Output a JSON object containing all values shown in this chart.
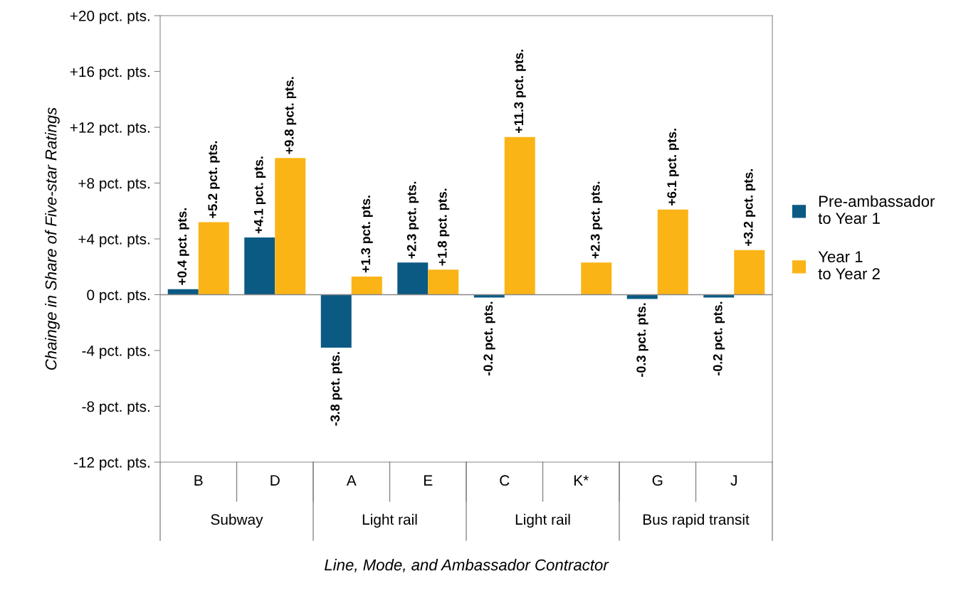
{
  "chart_data": {
    "type": "bar",
    "ylabel": "Chainge in Share of Five-star Ratings",
    "xlabel": "Line, Mode, and Ambassador Contractor",
    "categories": [
      "B",
      "D",
      "A",
      "E",
      "C",
      "K*",
      "G",
      "J"
    ],
    "annotations": [
      "Subway",
      "Light rail",
      "Light rail",
      "Bus rapid transit"
    ],
    "series": [
      {
        "name": "Pre-ambassador\nto Year 1",
        "color": "#0b5a84",
        "values": [
          0.4,
          4.1,
          -3.8,
          2.3,
          -0.2,
          null,
          -0.3,
          -0.2
        ],
        "value_labels": [
          "+0.4 pct. pts.",
          "+4.1 pct. pts.",
          "-3.8 pct. pts.",
          "+2.3 pct. pts.",
          "-0.2 pct. pts.",
          null,
          "-0.3 pct. pts.",
          "-0.2 pct. pts."
        ]
      },
      {
        "name": "Year 1\nto Year 2",
        "color": "#fbb416",
        "values": [
          5.2,
          9.8,
          1.3,
          1.8,
          11.3,
          2.3,
          6.1,
          3.2
        ],
        "value_labels": [
          "+5.2 pct. pts.",
          "+9.8 pct. pts.",
          "+1.3 pct. pts.",
          "+1.8 pct. pts.",
          "+11.3 pct. pts.",
          "+2.3 pct. pts.",
          "+6.1 pct. pts.",
          "+3.2 pct. pts."
        ]
      }
    ],
    "ylim": [
      -12,
      20
    ],
    "yticks": [
      {
        "value": -12,
        "label": "-12 pct. pts."
      },
      {
        "value": -8,
        "label": "-8 pct. pts."
      },
      {
        "value": -4,
        "label": "-4 pct. pts."
      },
      {
        "value": 0,
        "label": "0 pct. pts."
      },
      {
        "value": 4,
        "label": "+4 pct. pts."
      },
      {
        "value": 8,
        "label": "+8 pct. pts."
      },
      {
        "value": 12,
        "label": "+12 pct. pts."
      },
      {
        "value": 16,
        "label": "+16 pct. pts."
      },
      {
        "value": 20,
        "label": "+20 pct. pts."
      }
    ],
    "legend": "right"
  }
}
